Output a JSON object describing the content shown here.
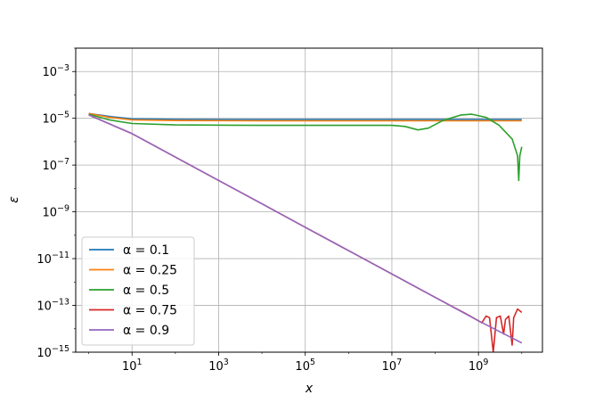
{
  "chart_data": {
    "type": "line",
    "title": "",
    "xlabel": "x",
    "ylabel": "ε",
    "xscale": "log",
    "yscale": "log",
    "xlim": [
      0.5,
      30000000000
    ],
    "ylim": [
      1e-15,
      0.01
    ],
    "grid": true,
    "legend_position": "lower-left",
    "x_ticks": [
      {
        "base": "10",
        "exp": "1",
        "value": 10
      },
      {
        "base": "10",
        "exp": "3",
        "value": 1000
      },
      {
        "base": "10",
        "exp": "5",
        "value": 100000
      },
      {
        "base": "10",
        "exp": "7",
        "value": 10000000
      },
      {
        "base": "10",
        "exp": "9",
        "value": 1000000000
      }
    ],
    "y_ticks": [
      {
        "base": "10",
        "exp": "−15",
        "value": 1e-15
      },
      {
        "base": "10",
        "exp": "−13",
        "value": 1e-13
      },
      {
        "base": "10",
        "exp": "−11",
        "value": 1e-11
      },
      {
        "base": "10",
        "exp": "−9",
        "value": 1e-09
      },
      {
        "base": "10",
        "exp": "−7",
        "value": 1e-07
      },
      {
        "base": "10",
        "exp": "−5",
        "value": 1e-05
      },
      {
        "base": "10",
        "exp": "−3",
        "value": 0.001
      }
    ],
    "series": [
      {
        "name": "α = 0.1",
        "color": "#1f77b4",
        "points": [
          [
            1,
            1.6e-05
          ],
          [
            3,
            1.2e-05
          ],
          [
            10,
            9.5e-06
          ],
          [
            100,
            9e-06
          ],
          [
            10000,
            8.8e-06
          ],
          [
            1000000,
            8.8e-06
          ],
          [
            100000000,
            8.8e-06
          ],
          [
            10000000000,
            8.8e-06
          ]
        ]
      },
      {
        "name": "α = 0.25",
        "color": "#ff7f0e",
        "points": [
          [
            1,
            1.6e-05
          ],
          [
            3,
            1.1e-05
          ],
          [
            10,
            8.5e-06
          ],
          [
            100,
            8e-06
          ],
          [
            10000,
            7.8e-06
          ],
          [
            1000000,
            7.8e-06
          ],
          [
            100000000,
            7.8e-06
          ],
          [
            10000000000,
            7.8e-06
          ]
        ]
      },
      {
        "name": "α = 0.5",
        "color": "#2ca02c",
        "points": [
          [
            1,
            1.5e-05
          ],
          [
            3,
            8.5e-06
          ],
          [
            10,
            6e-06
          ],
          [
            100,
            5.2e-06
          ],
          [
            10000,
            5e-06
          ],
          [
            1000000,
            5e-06
          ],
          [
            10000000,
            5e-06
          ],
          [
            20000000,
            4.5e-06
          ],
          [
            40000000,
            3.2e-06
          ],
          [
            70000000,
            3.8e-06
          ],
          [
            150000000,
            8e-06
          ],
          [
            400000000,
            1.4e-05
          ],
          [
            700000000,
            1.5e-05
          ],
          [
            1500000000,
            1.1e-05
          ],
          [
            3000000000,
            5e-06
          ],
          [
            6000000000,
            1.3e-06
          ],
          [
            8000000000,
            2.5e-07
          ],
          [
            8500000000,
            2.2e-08
          ],
          [
            9000000000,
            2.5e-07
          ],
          [
            10000000000,
            6e-07
          ]
        ]
      },
      {
        "name": "α = 0.75",
        "color": "#d62728",
        "points": [
          [
            1,
            1.4e-05
          ],
          [
            10,
            2.2e-06
          ],
          [
            100,
            2.2e-07
          ],
          [
            1000,
            2.2e-08
          ],
          [
            10000,
            2.2e-09
          ],
          [
            100000,
            2.2e-10
          ],
          [
            1000000,
            2.2e-11
          ],
          [
            10000000,
            2.2e-12
          ],
          [
            100000000,
            2.2e-13
          ],
          [
            500000000,
            4.5e-14
          ],
          [
            1000000000,
            2.2e-14
          ],
          [
            1200000000,
            1.8e-14
          ],
          [
            1500000000,
            3.5e-14
          ],
          [
            1800000000,
            3e-14
          ],
          [
            2200000000,
            1e-15
          ],
          [
            2600000000,
            3e-14
          ],
          [
            3200000000,
            3.5e-14
          ],
          [
            3800000000,
            6e-15
          ],
          [
            4200000000,
            2.5e-14
          ],
          [
            5000000000,
            3.5e-14
          ],
          [
            6000000000,
            2e-15
          ],
          [
            6500000000,
            3e-14
          ],
          [
            8000000000,
            7e-14
          ],
          [
            10000000000,
            5e-14
          ]
        ]
      },
      {
        "name": "α = 0.9",
        "color": "#9467bd",
        "points": [
          [
            1,
            1.4e-05
          ],
          [
            10,
            2.2e-06
          ],
          [
            100,
            2.2e-07
          ],
          [
            1000,
            2.2e-08
          ],
          [
            10000,
            2.2e-09
          ],
          [
            100000,
            2.2e-10
          ],
          [
            1000000,
            2.2e-11
          ],
          [
            10000000,
            2.2e-12
          ],
          [
            100000000,
            2.2e-13
          ],
          [
            1000000000,
            2.2e-14
          ],
          [
            10000000000,
            2.5e-15
          ]
        ]
      }
    ]
  }
}
